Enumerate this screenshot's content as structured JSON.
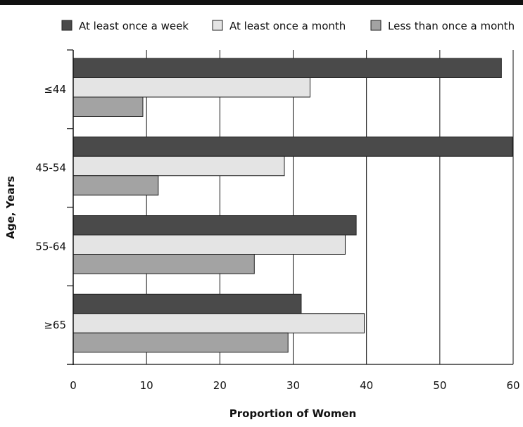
{
  "chart_data": {
    "type": "bar",
    "orientation": "horizontal",
    "categories": [
      "≤44",
      "45-54",
      "55-64",
      "≥65"
    ],
    "series": [
      {
        "name": "At least once a week",
        "color": "#4a4a4a",
        "values": [
          58.4,
          59.9,
          38.6,
          31.1
        ]
      },
      {
        "name": "At least once a month",
        "color": "#e4e4e4",
        "values": [
          32.3,
          28.8,
          37.1,
          39.7
        ]
      },
      {
        "name": "Less than once a month",
        "color": "#a3a3a3",
        "values": [
          9.5,
          11.6,
          24.7,
          29.3
        ]
      }
    ],
    "xlabel": "Proportion of Women",
    "ylabel": "Age, Years",
    "xlim": [
      0,
      60
    ],
    "xticks": [
      0,
      10,
      20,
      30,
      40,
      50,
      60
    ],
    "grid": "vertical",
    "legend_position": "top"
  }
}
